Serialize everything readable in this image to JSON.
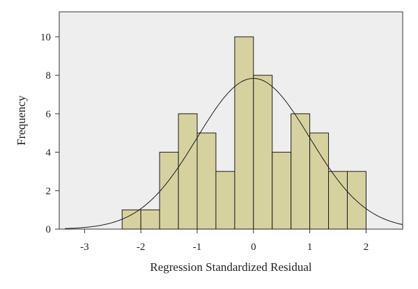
{
  "chart_data": {
    "type": "bar",
    "subtype": "histogram",
    "xlabel": "Regression Standardized Residual",
    "ylabel": "Frequency",
    "xlim": [
      -3.45,
      2.65
    ],
    "ylim": [
      0,
      11.3
    ],
    "x_ticks": [
      -3,
      -2,
      -1,
      0,
      1,
      2
    ],
    "x_tick_labels": [
      "-3",
      "-2",
      "-1",
      "0",
      "1",
      "2"
    ],
    "y_ticks": [
      0,
      2,
      4,
      6,
      8,
      10
    ],
    "y_tick_labels": [
      "0",
      "2",
      "4",
      "6",
      "8",
      "10"
    ],
    "bin_width": 0.333,
    "bins": [
      {
        "start": -2.333,
        "end": -2.0,
        "value": 1
      },
      {
        "start": -2.0,
        "end": -1.667,
        "value": 1
      },
      {
        "start": -1.667,
        "end": -1.333,
        "value": 4
      },
      {
        "start": -1.333,
        "end": -1.0,
        "value": 6
      },
      {
        "start": -1.0,
        "end": -0.667,
        "value": 5
      },
      {
        "start": -0.667,
        "end": -0.333,
        "value": 3
      },
      {
        "start": -0.333,
        "end": 0.0,
        "value": 10
      },
      {
        "start": 0.0,
        "end": 0.333,
        "value": 8
      },
      {
        "start": 0.333,
        "end": 0.667,
        "value": 4
      },
      {
        "start": 0.667,
        "end": 1.0,
        "value": 6
      },
      {
        "start": 1.0,
        "end": 1.333,
        "value": 5
      },
      {
        "start": 1.333,
        "end": 1.667,
        "value": 3
      },
      {
        "start": 1.667,
        "end": 2.0,
        "value": 3
      }
    ],
    "normal_curve": {
      "mean": 0.0,
      "sd": 1.0,
      "n": 59
    },
    "grid": false,
    "legend": "none",
    "colors": {
      "bar_fill": "#d6d2a0",
      "bar_stroke": "#1a1a1a",
      "plot_background": "#eeeeee",
      "curve": "#1a1a1a"
    }
  }
}
